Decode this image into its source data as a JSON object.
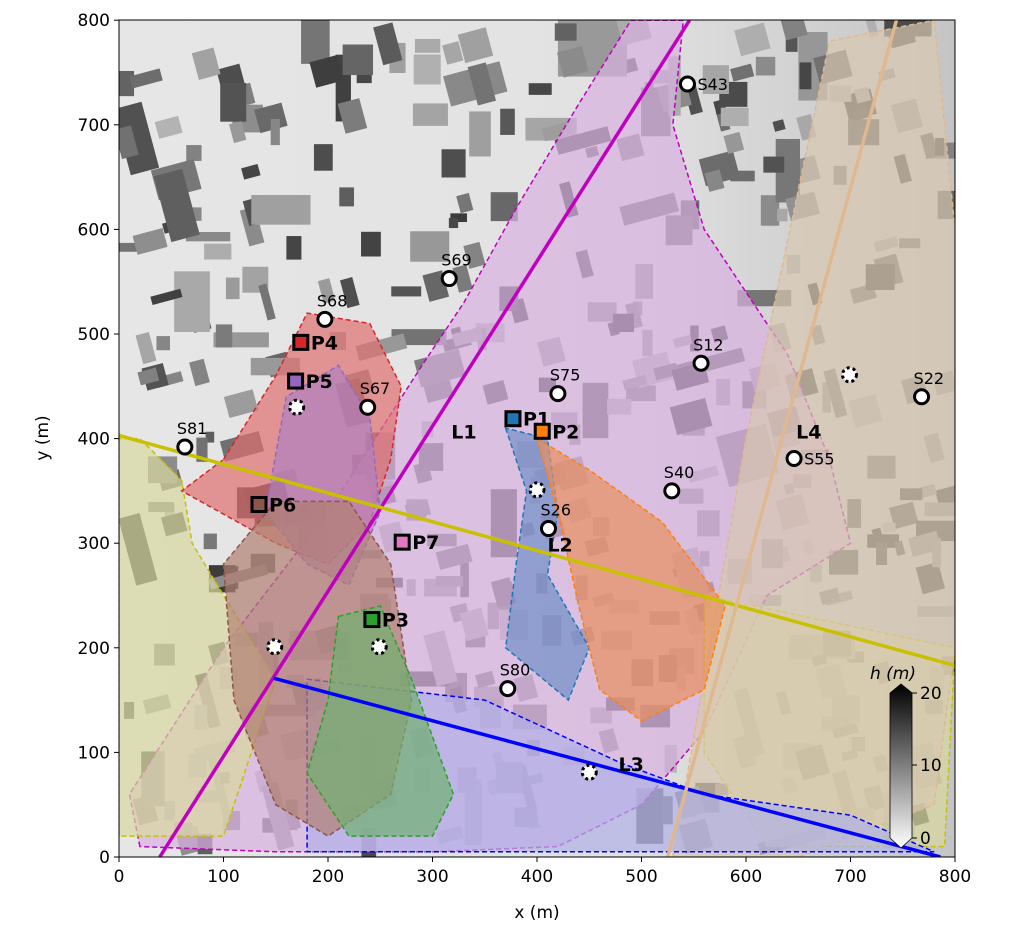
{
  "chart_data": {
    "type": "scatter",
    "xlabel": "x (m)",
    "ylabel": "y (m)",
    "xlim": [
      0,
      800
    ],
    "ylim": [
      0,
      800
    ],
    "xticks": [
      "0",
      "100",
      "200",
      "300",
      "400",
      "500",
      "600",
      "700",
      "800"
    ],
    "yticks": [
      "0",
      "100",
      "200",
      "300",
      "400",
      "500",
      "600",
      "700",
      "800"
    ],
    "grid": false,
    "colorbar": {
      "label": "h (m)",
      "range": [
        0,
        20
      ],
      "ticks": [
        "0",
        "10",
        "20"
      ],
      "colormap": "gray_r",
      "extend": "both"
    },
    "sensors": [
      {
        "label": "S43",
        "x": 544,
        "y": 739
      },
      {
        "label": "S69",
        "x": 316,
        "y": 553
      },
      {
        "label": "S68",
        "x": 197,
        "y": 514
      },
      {
        "label": "S67",
        "x": 238,
        "y": 430
      },
      {
        "label": "S81",
        "x": 63,
        "y": 392
      },
      {
        "label": "S75",
        "x": 420,
        "y": 443
      },
      {
        "label": "S12",
        "x": 557,
        "y": 472
      },
      {
        "label": "S22",
        "x": 768,
        "y": 440
      },
      {
        "label": "S55",
        "x": 646,
        "y": 381
      },
      {
        "label": "S40",
        "x": 529,
        "y": 350
      },
      {
        "label": "S26",
        "x": 411,
        "y": 314
      },
      {
        "label": "S80",
        "x": 372,
        "y": 161
      }
    ],
    "sources": [
      {
        "label": "P1",
        "x": 377,
        "y": 419,
        "color": "#1f77b4"
      },
      {
        "label": "P2",
        "x": 405,
        "y": 407,
        "color": "#ff7f0e"
      },
      {
        "label": "P3",
        "x": 242,
        "y": 227,
        "color": "#2ca02c"
      },
      {
        "label": "P4",
        "x": 174,
        "y": 492,
        "color": "#d62728"
      },
      {
        "label": "P5",
        "x": 169,
        "y": 455,
        "color": "#9467bd"
      },
      {
        "label": "P6",
        "x": 134,
        "y": 337,
        "color": "#8c564b"
      },
      {
        "label": "P7",
        "x": 271,
        "y": 301,
        "color": "#e377c2"
      }
    ],
    "dotted_markers": [
      {
        "x": 170,
        "y": 430
      },
      {
        "x": 400,
        "y": 351
      },
      {
        "x": 699,
        "y": 461
      },
      {
        "x": 149,
        "y": 201
      },
      {
        "x": 249,
        "y": 201
      },
      {
        "x": 450,
        "y": 81
      }
    ],
    "lines": [
      {
        "label": "L1",
        "from": [
          39,
          0
        ],
        "to": [
          546,
          800
        ],
        "color": "#c000c0",
        "label_at": [
          318,
          400
        ]
      },
      {
        "label": "L2",
        "from": [
          0,
          403
        ],
        "to": [
          800,
          183
        ],
        "color": "#c8c000",
        "label_at": [
          410,
          292
        ]
      },
      {
        "label": "L3",
        "from": [
          148,
          171
        ],
        "to": [
          786,
          0
        ],
        "color": "#0000ff",
        "label_at": [
          478,
          82
        ]
      },
      {
        "label": "L4",
        "from": [
          525,
          0
        ],
        "to": [
          744,
          800
        ],
        "color": "#e0b890",
        "label_at": [
          648,
          400
        ]
      }
    ]
  }
}
